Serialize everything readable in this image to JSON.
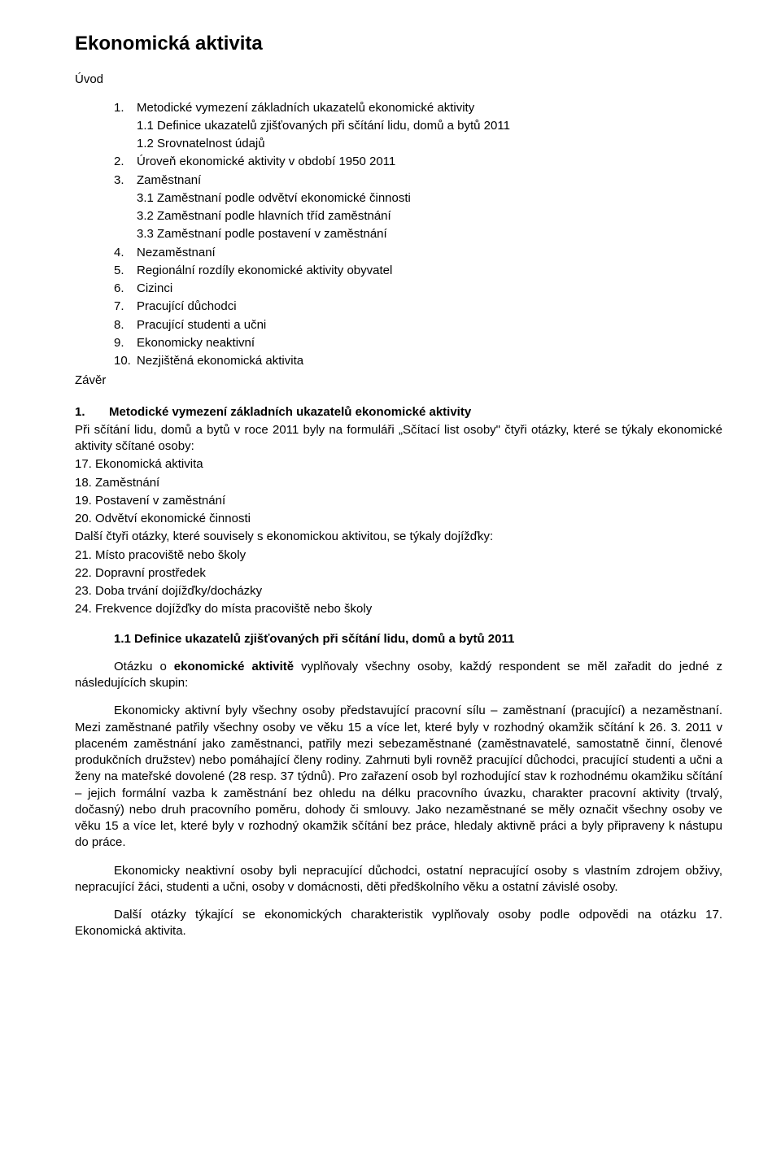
{
  "title": "Ekonomická aktivita",
  "intro_label": "Úvod",
  "toc": [
    {
      "n": "1.",
      "t": "Metodické vymezení základních ukazatelů ekonomické aktivity"
    },
    {
      "n": "",
      "t": "1.1 Definice ukazatelů zjišťovaných při sčítání lidu, domů a bytů 2011",
      "sub": true
    },
    {
      "n": "",
      "t": "1.2 Srovnatelnost údajů",
      "sub": true
    },
    {
      "n": "2.",
      "t": "Úroveň ekonomické aktivity v období 1950 2011"
    },
    {
      "n": "3.",
      "t": "Zaměstnaní"
    },
    {
      "n": "",
      "t": "3.1 Zaměstnaní podle odvětví ekonomické činnosti",
      "sub": true
    },
    {
      "n": "",
      "t": "3.2 Zaměstnaní podle hlavních tříd zaměstnání",
      "sub": true
    },
    {
      "n": "",
      "t": "3.3 Zaměstnaní podle postavení v zaměstnání",
      "sub": true
    },
    {
      "n": "4.",
      "t": "Nezaměstnaní"
    },
    {
      "n": "5.",
      "t": "Regionální rozdíly ekonomické aktivity obyvatel"
    },
    {
      "n": "6.",
      "t": "Cizinci"
    },
    {
      "n": "7.",
      "t": "Pracující důchodci"
    },
    {
      "n": "8.",
      "t": "Pracující studenti a učni"
    },
    {
      "n": "9.",
      "t": "Ekonomicky neaktivní"
    },
    {
      "n": "10.",
      "t": "Nezjištěná ekonomická aktivita"
    }
  ],
  "zaver": "Závěr",
  "section1": {
    "num": "1.",
    "title": "Metodické vymezení základních ukazatelů ekonomické aktivity",
    "lead": "Při sčítání lidu, domů a bytů v roce 2011 byly na formuláři „Sčítací list osoby\" čtyři otázky, které se týkaly ekonomické aktivity sčítané osoby:",
    "items1": [
      "17. Ekonomická aktivita",
      "18. Zaměstnání",
      "19. Postavení v zaměstnání",
      "20. Odvětví ekonomické činnosti"
    ],
    "mid": "Další čtyři otázky, které souvisely s ekonomickou aktivitou, se týkaly dojížďky:",
    "items2": [
      "21. Místo pracoviště nebo školy",
      "22. Dopravní prostředek",
      "23. Doba trvání dojížďky/docházky",
      "24. Frekvence dojížďky do místa pracoviště nebo školy"
    ]
  },
  "subsection11": {
    "title": "1.1 Definice ukazatelů zjišťovaných při sčítání lidu, domů a bytů 2011",
    "p1_a": "Otázku o ",
    "p1_b": "ekonomické aktivitě",
    "p1_c": " vyplňovaly všechny osoby, každý respondent se měl zařadit do jedné z následujících skupin:",
    "p2": "Ekonomicky aktivní byly všechny osoby představující pracovní sílu – zaměstnaní (pracující) a nezaměstnaní. Mezi zaměstnané patřily všechny osoby ve věku 15 a více let, které byly v rozhodný okamžik sčítání k 26. 3. 2011 v placeném zaměstnání jako zaměstnanci, patřily mezi sebezaměstnané (zaměstnavatelé, samostatně činní, členové produkčních družstev) nebo pomáhající členy rodiny. Zahrnuti byli rovněž pracující důchodci, pracující studenti a učni a ženy na mateřské dovolené (28 resp. 37 týdnů). Pro zařazení osob byl rozhodující stav k rozhodnému okamžiku sčítání – jejich formální vazba k zaměstnání bez ohledu na délku pracovního úvazku, charakter pracovní aktivity (trvalý, dočasný) nebo druh pracovního poměru, dohody či smlouvy. Jako nezaměstnané se měly označit všechny osoby ve věku 15 a více let, které byly v rozhodný okamžik sčítání bez práce, hledaly aktivně práci a byly připraveny k nástupu do práce.",
    "p3": "Ekonomicky neaktivní osoby byli nepracující důchodci, ostatní nepracující osoby s vlastním zdrojem obživy, nepracující žáci, studenti a učni, osoby v domácnosti, děti předškolního věku a ostatní závislé osoby.",
    "p4": "Další otázky týkající se ekonomických charakteristik vyplňovaly osoby podle odpovědi na otázku 17. Ekonomická aktivita."
  }
}
